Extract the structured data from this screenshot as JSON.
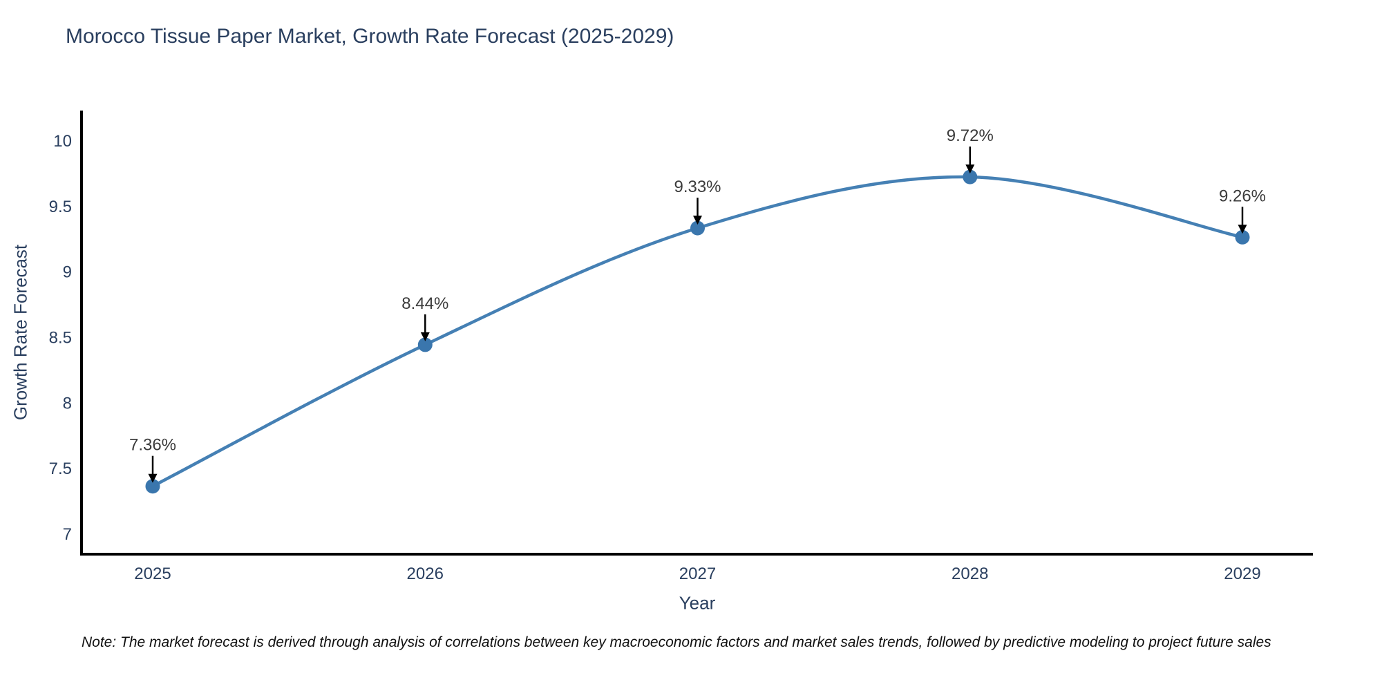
{
  "chart_data": {
    "type": "line",
    "title": "Morocco Tissue Paper Market, Growth Rate Forecast (2025-2029)",
    "xlabel": "Year",
    "ylabel": "Growth Rate Forecast",
    "x": [
      "2025",
      "2026",
      "2027",
      "2028",
      "2029"
    ],
    "y": [
      7.36,
      8.44,
      9.33,
      9.72,
      9.26
    ],
    "point_labels": [
      "7.36%",
      "8.44%",
      "9.33%",
      "9.72%",
      "9.26%"
    ],
    "yticks": [
      7,
      7.5,
      8,
      8.5,
      9,
      9.5,
      10
    ],
    "ylim": [
      6.84,
      10.23
    ],
    "grid": false,
    "legend": "none",
    "line_style": "spline",
    "note": "Note: The market forecast is derived through analysis of correlations between key macroeconomic factors and market sales trends, followed by predictive modeling to project future sales",
    "colors": {
      "line": "#4580b4",
      "marker": "#3a76ad",
      "axis": "#000000",
      "tick_label": "#2a3f5f",
      "annotation_text": "#3b3b3b",
      "annotation_arrow": "#000000",
      "title": "#2a3f5f"
    }
  }
}
